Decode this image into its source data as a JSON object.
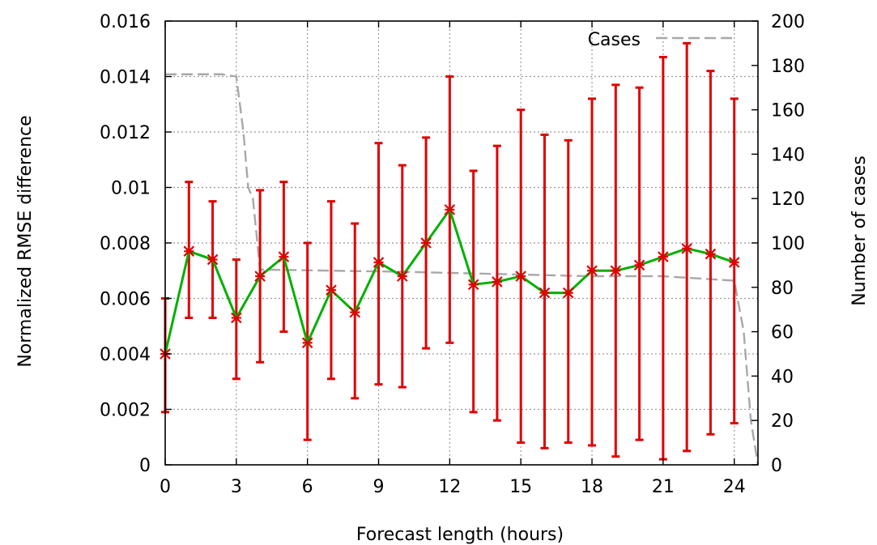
{
  "chart_data": {
    "type": "line",
    "xlabel": "Forecast length (hours)",
    "ylabel": "Normalized RMSE difference",
    "y2label": "Number of cases",
    "xlim": [
      0,
      25
    ],
    "ylim": [
      0,
      0.016
    ],
    "y2lim": [
      0,
      200
    ],
    "grid": true,
    "legend": "top-right",
    "x_ticks": [
      "0",
      "3",
      "6",
      "9",
      "12",
      "15",
      "18",
      "21",
      "24"
    ],
    "y_ticks": [
      "0",
      "0.002",
      "0.004",
      "0.006",
      "0.008",
      "0.01",
      "0.012",
      "0.014",
      "0.016"
    ],
    "y2_ticks": [
      "0",
      "20",
      "40",
      "60",
      "80",
      "100",
      "120",
      "140",
      "160",
      "180",
      "200"
    ],
    "series": [
      {
        "axis": "left",
        "color": "#00b000",
        "marker_color": "#e00000",
        "errorbar_color": "#e00000",
        "x": [
          0,
          1,
          2,
          3,
          4,
          5,
          6,
          7,
          8,
          9,
          10,
          11,
          12,
          13,
          14,
          15,
          16,
          17,
          18,
          19,
          20,
          21,
          22,
          23,
          24
        ],
        "values": [
          0.004,
          0.0077,
          0.0074,
          0.0053,
          0.0068,
          0.0075,
          0.0044,
          0.0063,
          0.0055,
          0.0073,
          0.0068,
          0.008,
          0.0092,
          0.0065,
          0.0066,
          0.0068,
          0.0062,
          0.0062,
          0.007,
          0.007,
          0.0072,
          0.0075,
          0.0078,
          0.0076,
          0.0073
        ],
        "err_low": [
          0.0019,
          0.0053,
          0.0053,
          0.0031,
          0.0037,
          0.0048,
          0.0009,
          0.0031,
          0.0024,
          0.0029,
          0.0028,
          0.0042,
          0.0044,
          0.0019,
          0.0016,
          0.0008,
          0.0006,
          0.0008,
          0.0007,
          0.0003,
          0.0009,
          0.0002,
          0.0005,
          0.0011,
          0.0015
        ],
        "err_high": [
          0.006,
          0.0102,
          0.0095,
          0.0074,
          0.0099,
          0.0102,
          0.008,
          0.0095,
          0.0087,
          0.0116,
          0.0108,
          0.0118,
          0.014,
          0.0106,
          0.0115,
          0.0128,
          0.0119,
          0.0117,
          0.0132,
          0.0137,
          0.0136,
          0.0147,
          0.0152,
          0.0142,
          0.0132
        ]
      },
      {
        "name": "Cases",
        "axis": "right",
        "color": "#a8a8a8",
        "dash": "dashed",
        "x": [
          0,
          2.4,
          3,
          3.3,
          3.5,
          3.7,
          4,
          10,
          14,
          18,
          21,
          24,
          24.4,
          24.7,
          25
        ],
        "values": [
          176,
          176,
          175,
          150,
          125,
          120,
          88,
          87,
          86,
          85,
          85,
          83,
          60,
          20,
          0
        ]
      }
    ]
  }
}
